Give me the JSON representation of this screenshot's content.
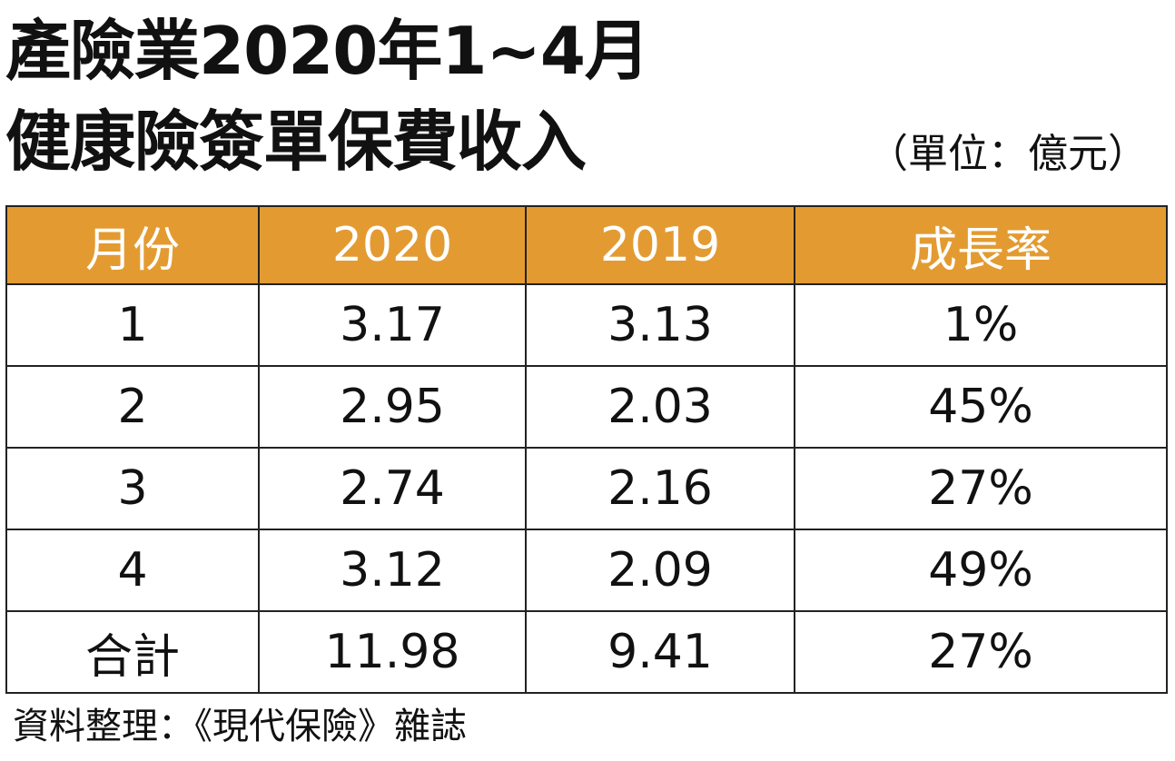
{
  "title": {
    "line1": "產險業2020年1~4月",
    "line2": "健康險簽單保費收入"
  },
  "unit_note": "（單位：億元）",
  "colors": {
    "header_bg": "#E39B31",
    "header_text": "#FFFFFF",
    "border": "#222222"
  },
  "table": {
    "headers": [
      "月份",
      "2020",
      "2019",
      "成長率"
    ],
    "rows": [
      [
        "1",
        "3.17",
        "3.13",
        "1%"
      ],
      [
        "2",
        "2.95",
        "2.03",
        "45%"
      ],
      [
        "3",
        "2.74",
        "2.16",
        "27%"
      ],
      [
        "4",
        "3.12",
        "2.09",
        "49%"
      ],
      [
        "合計",
        "11.98",
        "9.41",
        "27%"
      ]
    ]
  },
  "source": "資料整理：《現代保險》雜誌"
}
